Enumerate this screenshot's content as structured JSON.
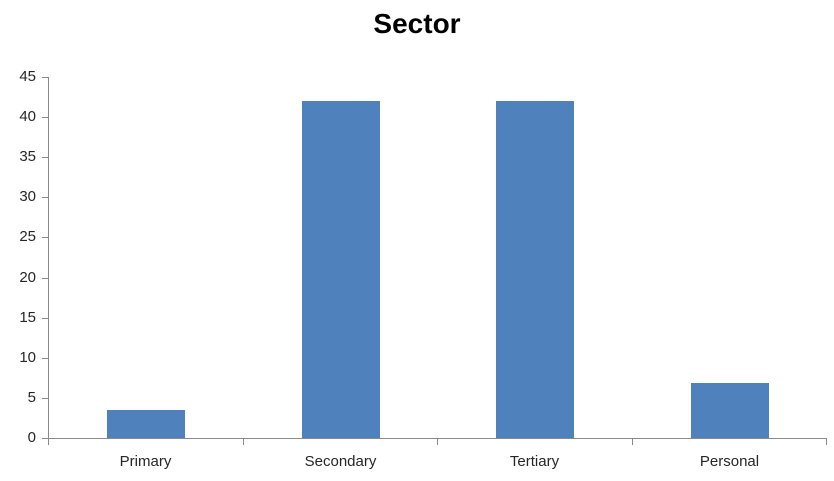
{
  "chart_data": {
    "type": "bar",
    "title": "Sector",
    "categories": [
      "Primary",
      "Secondary",
      "Tertiary",
      "Personal"
    ],
    "values": [
      3.5,
      42,
      42,
      6.8
    ],
    "yticks": [
      0,
      5,
      10,
      15,
      20,
      25,
      30,
      35,
      40,
      45
    ],
    "ylim": [
      0,
      45
    ],
    "xlabel": "",
    "ylabel": "",
    "grid": false,
    "legend": "none",
    "bar_color": "#4F81BD",
    "axis_color": "#8A8A8A",
    "text_color": "#262626"
  }
}
